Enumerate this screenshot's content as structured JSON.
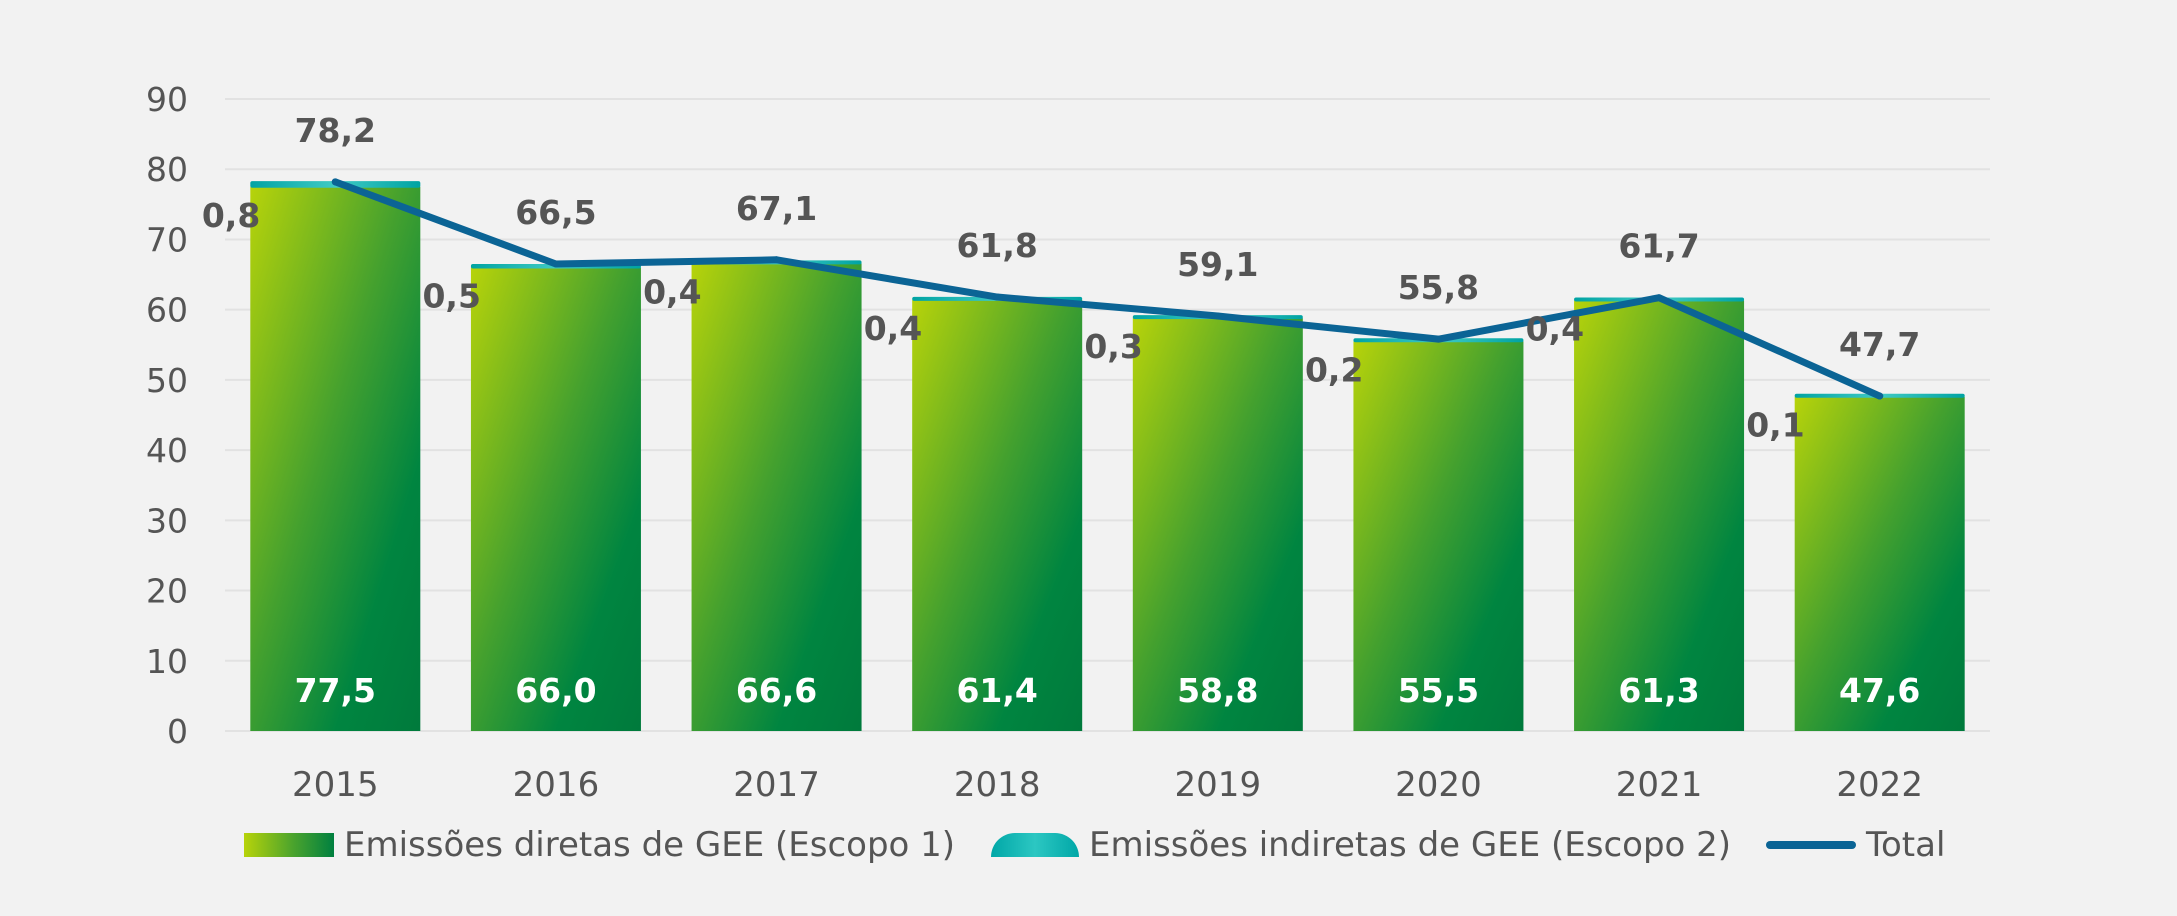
{
  "chart_data": {
    "type": "bar",
    "categories": [
      "2015",
      "2016",
      "2017",
      "2018",
      "2019",
      "2020",
      "2021",
      "2022"
    ],
    "series": [
      {
        "name": "Emissões diretas de GEE (Escopo 1)",
        "values": [
          77.5,
          66.0,
          66.6,
          61.4,
          58.8,
          55.5,
          61.3,
          47.6
        ],
        "labels": [
          "77,5",
          "66,0",
          "66,6",
          "61,4",
          "58,8",
          "55,5",
          "61,3",
          "47,6"
        ]
      },
      {
        "name": "Emissões indiretas de GEE (Escopo 2)",
        "values": [
          0.8,
          0.5,
          0.4,
          0.4,
          0.3,
          0.2,
          0.4,
          0.1
        ],
        "labels": [
          "0,8",
          "0,5",
          "0,4",
          "0,4",
          "0,3",
          "0,2",
          "0,4",
          "0,1"
        ]
      },
      {
        "name": "Total",
        "type": "line",
        "values": [
          78.2,
          66.5,
          67.1,
          61.8,
          59.1,
          55.8,
          61.7,
          47.7
        ],
        "labels": [
          "78,2",
          "66,5",
          "67,1",
          "61,8",
          "59,1",
          "55,8",
          "61,7",
          "47,7"
        ]
      }
    ],
    "y_ticks": [
      "0",
      "10",
      "20",
      "30",
      "40",
      "50",
      "60",
      "70",
      "80",
      "90"
    ],
    "ylim": [
      0,
      90
    ],
    "grid": true,
    "legend_position": "bottom",
    "colors": {
      "scope1_top": "#b7d30a",
      "scope1_bottom": "#008040",
      "scope2": "#1fb8b4",
      "total_line": "#0b6495",
      "label_dark": "#555555",
      "label_light": "#ffffff",
      "grid": "#e2e2e2",
      "axis_text": "#555555"
    }
  }
}
